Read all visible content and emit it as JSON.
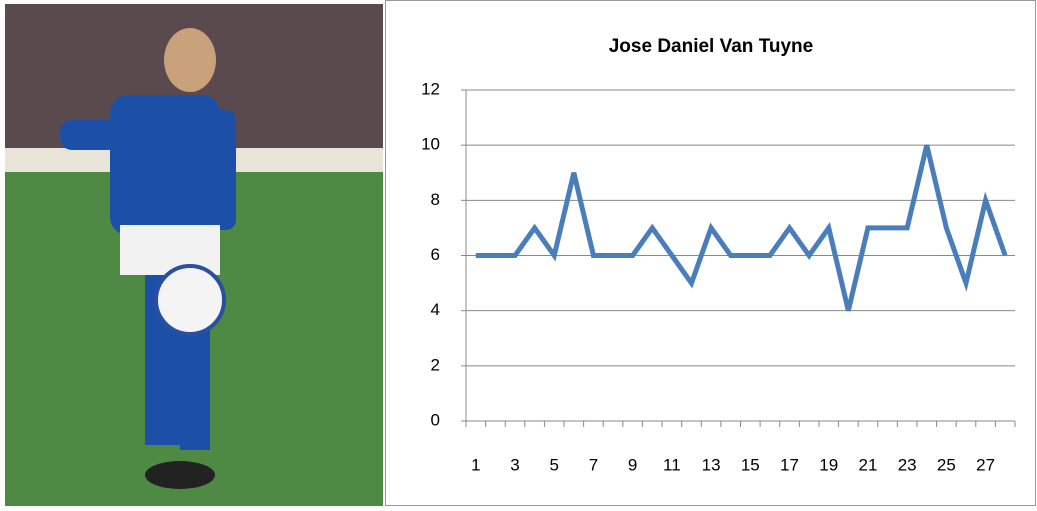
{
  "chart_data": {
    "type": "line",
    "title": "Jose Daniel Van Tuyne",
    "categories": [
      1,
      null,
      3,
      null,
      5,
      null,
      7,
      null,
      9,
      null,
      11,
      null,
      13,
      null,
      15,
      null,
      17,
      null,
      19,
      null,
      21,
      null,
      23,
      null,
      25,
      null,
      27,
      null
    ],
    "series": [
      {
        "color": "#4a7ebb",
        "values": [
          6,
          6,
          6,
          7,
          6,
          9,
          6,
          6,
          6,
          7,
          6,
          5,
          7,
          6,
          6,
          6,
          7,
          6,
          7,
          4,
          7,
          7,
          7,
          10,
          7,
          5,
          8,
          6
        ]
      }
    ],
    "ylim": [
      0,
      12
    ],
    "yticks": [
      0,
      2,
      4,
      6,
      8,
      10,
      12
    ],
    "grid": true
  }
}
